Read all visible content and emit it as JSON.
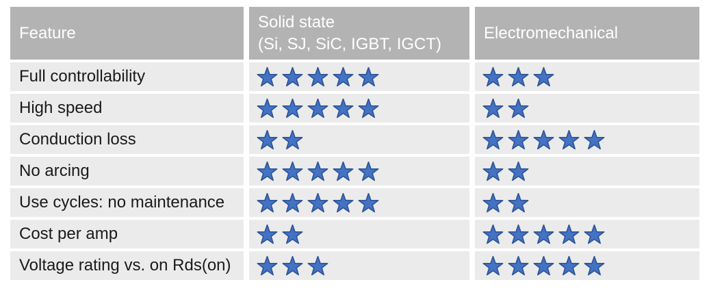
{
  "table": {
    "header": {
      "feature": "Feature",
      "solid_state_line1": "Solid state",
      "solid_state_line2": "(Si, SJ, SiC, IGBT, IGCT)",
      "electromechanical": "Electromechanical"
    },
    "rows": [
      {
        "feature": "Full controllability",
        "solid_state_stars": 5,
        "electromechanical_stars": 3
      },
      {
        "feature": "High speed",
        "solid_state_stars": 5,
        "electromechanical_stars": 2
      },
      {
        "feature": "Conduction loss",
        "solid_state_stars": 2,
        "electromechanical_stars": 5
      },
      {
        "feature": "No arcing",
        "solid_state_stars": 5,
        "electromechanical_stars": 2
      },
      {
        "feature": "Use cycles: no maintenance",
        "solid_state_stars": 5,
        "electromechanical_stars": 2
      },
      {
        "feature": "Cost per amp",
        "solid_state_stars": 2,
        "electromechanical_stars": 5
      },
      {
        "feature": "Voltage rating vs. on Rds(on)",
        "solid_state_stars": 3,
        "electromechanical_stars": 5
      }
    ],
    "colors": {
      "header_bg": "#b3b3b3",
      "header_text": "#ffffff",
      "row_bg": "#ebebeb",
      "row_text": "#1a1a1a",
      "star_fill": "#4472c4",
      "star_stroke": "#2e5597"
    }
  }
}
